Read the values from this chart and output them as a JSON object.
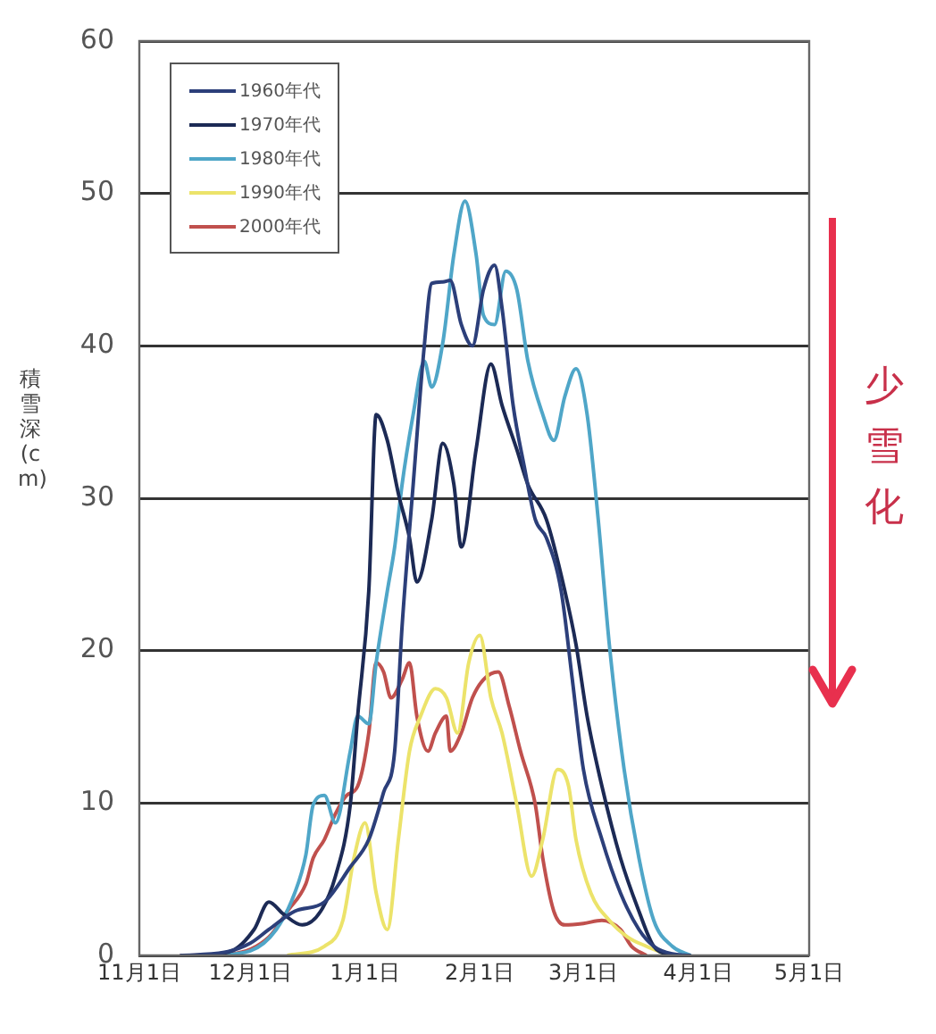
{
  "chart_data": {
    "type": "line",
    "ylabel": "積雪深(cm)",
    "annotations": [
      "少雪化"
    ],
    "xlim": [
      "2000-11-01",
      "2001-05-01"
    ],
    "xticks": [
      {
        "value": "2000-11-01",
        "label": "11月1日"
      },
      {
        "value": "2000-12-01",
        "label": "12月1日"
      },
      {
        "value": "2001-01-01",
        "label": "1月1日"
      },
      {
        "value": "2001-02-01",
        "label": "2月1日"
      },
      {
        "value": "2001-03-01",
        "label": "3月1日"
      },
      {
        "value": "2001-04-01",
        "label": "4月1日"
      },
      {
        "value": "2001-05-01",
        "label": "5月1日"
      }
    ],
    "ylim": [
      0,
      60
    ],
    "yticks": [
      0,
      10,
      20,
      30,
      40,
      50,
      60
    ],
    "grid": "y",
    "legend": "top left",
    "series": [
      {
        "name": "1960年代",
        "color": "#2c3f7a",
        "x": [
          "2000-11-12",
          "2000-11-24",
          "2000-12-01",
          "2000-12-06",
          "2000-12-13",
          "2000-12-21",
          "2000-12-28",
          "2001-01-02",
          "2001-01-06",
          "2001-01-09",
          "2001-01-11",
          "2001-01-14",
          "2001-01-17",
          "2001-01-19",
          "2001-01-22",
          "2001-01-24",
          "2001-01-27",
          "2001-01-30",
          "2001-02-02",
          "2001-02-05",
          "2001-02-07",
          "2001-02-10",
          "2001-02-13",
          "2001-02-16",
          "2001-02-19",
          "2001-02-23",
          "2001-02-26",
          "2001-03-01",
          "2001-03-06",
          "2001-03-11",
          "2001-03-16",
          "2001-03-20",
          "2001-03-25",
          "2001-03-30"
        ],
        "values": [
          0,
          0.2,
          0.8,
          1.7,
          2.9,
          3.5,
          5.8,
          7.6,
          10.7,
          13.4,
          21.6,
          30.9,
          40,
          44.1,
          44.2,
          44.3,
          41.4,
          40,
          43.7,
          45.3,
          42.5,
          36.1,
          32.1,
          28.6,
          27.4,
          23.9,
          18.1,
          12.2,
          7.6,
          4.1,
          1.7,
          0.6,
          0.1,
          0
        ]
      },
      {
        "name": "1970年代",
        "color": "#1c2a55",
        "x": [
          "2000-11-17",
          "2000-11-26",
          "2000-12-02",
          "2000-12-06",
          "2000-12-10",
          "2000-12-15",
          "2000-12-20",
          "2000-12-24",
          "2000-12-28",
          "2000-12-30",
          "2001-01-02",
          "2001-01-04",
          "2001-01-07",
          "2001-01-10",
          "2001-01-13",
          "2001-01-15",
          "2001-01-19",
          "2001-01-22",
          "2001-01-25",
          "2001-01-27",
          "2001-01-31",
          "2001-02-04",
          "2001-02-07",
          "2001-02-11",
          "2001-02-14",
          "2001-02-19",
          "2001-02-24",
          "2001-02-27",
          "2001-03-02",
          "2001-03-06",
          "2001-03-11",
          "2001-03-16",
          "2001-03-20",
          "2001-03-25"
        ],
        "values": [
          0,
          0.3,
          1.7,
          3.5,
          2.7,
          2,
          2.9,
          5.2,
          9.9,
          15.7,
          23.9,
          35.5,
          33.8,
          30.3,
          27.4,
          24.5,
          28.6,
          33.6,
          30.9,
          26.8,
          33.2,
          38.8,
          36.1,
          33.2,
          30.9,
          28.6,
          23.9,
          20.4,
          15.7,
          11.1,
          6.4,
          2.9,
          0.6,
          0
        ]
      },
      {
        "name": "1980年代",
        "color": "#4fa6c8",
        "x": [
          "2000-11-21",
          "2000-12-01",
          "2000-12-08",
          "2000-12-13",
          "2000-12-16",
          "2000-12-18",
          "2000-12-21",
          "2000-12-24",
          "2000-12-28",
          "2000-12-30",
          "2001-01-02",
          "2001-01-04",
          "2001-01-07",
          "2001-01-09",
          "2001-01-11",
          "2001-01-14",
          "2001-01-17",
          "2001-01-19",
          "2001-01-22",
          "2001-01-25",
          "2001-01-28",
          "2001-01-31",
          "2001-02-02",
          "2001-02-05",
          "2001-02-08",
          "2001-02-11",
          "2001-02-14",
          "2001-02-18",
          "2001-02-21",
          "2001-02-24",
          "2001-02-27",
          "2001-03-02",
          "2001-03-05",
          "2001-03-08",
          "2001-03-12",
          "2001-03-16",
          "2001-03-20",
          "2001-03-25",
          "2001-03-30"
        ],
        "values": [
          0,
          0.3,
          1.7,
          4.1,
          6.6,
          9.9,
          10.5,
          8.7,
          13.4,
          15.7,
          15.2,
          19.2,
          23.9,
          26.8,
          30.9,
          35.5,
          39,
          37.3,
          40.2,
          46,
          49.5,
          46,
          42,
          41.4,
          44.9,
          43.7,
          39,
          35.5,
          33.8,
          36.7,
          38.5,
          35.5,
          28.6,
          20.4,
          12.2,
          6.4,
          2.3,
          0.6,
          0
        ]
      },
      {
        "name": "1990年代",
        "color": "#ece36a",
        "x": [
          "2000-12-11",
          "2000-12-21",
          "2000-12-26",
          "2000-12-29",
          "2001-01-01",
          "2001-01-04",
          "2001-01-07",
          "2001-01-10",
          "2001-01-13",
          "2001-01-16",
          "2001-01-20",
          "2001-01-23",
          "2001-01-26",
          "2001-01-29",
          "2001-02-01",
          "2001-02-04",
          "2001-02-07",
          "2001-02-11",
          "2001-02-15",
          "2001-02-18",
          "2001-02-22",
          "2001-02-25",
          "2001-02-27",
          "2001-03-03",
          "2001-03-08",
          "2001-03-13",
          "2001-03-18",
          "2001-03-24"
        ],
        "values": [
          0,
          0.6,
          2.3,
          6.4,
          8.7,
          4.1,
          1.7,
          7.6,
          13.4,
          15.7,
          17.5,
          16.9,
          14.6,
          19.2,
          21,
          16.9,
          14.6,
          9.9,
          5.2,
          7.6,
          12.2,
          11.1,
          7.6,
          4.1,
          2.3,
          1.2,
          0.6,
          0
        ]
      },
      {
        "name": "2000年代",
        "color": "#c0504d",
        "x": [
          "2000-11-12",
          "2000-11-26",
          "2000-12-06",
          "2000-12-11",
          "2000-12-16",
          "2000-12-18",
          "2000-12-21",
          "2000-12-24",
          "2000-12-27",
          "2000-12-30",
          "2001-01-02",
          "2001-01-04",
          "2001-01-06",
          "2001-01-08",
          "2001-01-11",
          "2001-01-13",
          "2001-01-15",
          "2001-01-18",
          "2001-01-20",
          "2001-01-23",
          "2001-01-24",
          "2001-01-27",
          "2001-01-30",
          "2001-02-02",
          "2001-02-06",
          "2001-02-09",
          "2001-02-12",
          "2001-02-16",
          "2001-02-18",
          "2001-02-21",
          "2001-02-24",
          "2001-03-01",
          "2001-03-06",
          "2001-03-11",
          "2001-03-14",
          "2001-03-18"
        ],
        "values": [
          0,
          0.1,
          1.2,
          2.9,
          4.7,
          6.4,
          7.6,
          9.3,
          10.5,
          11.1,
          14.6,
          19.2,
          18.6,
          16.9,
          18.1,
          19.2,
          15.7,
          13.4,
          14.6,
          15.7,
          13.4,
          14.6,
          16.9,
          18.1,
          18.6,
          16.3,
          13.4,
          9.9,
          6.4,
          2.9,
          2,
          2.1,
          2.3,
          1.7,
          0.6,
          0
        ]
      }
    ]
  }
}
